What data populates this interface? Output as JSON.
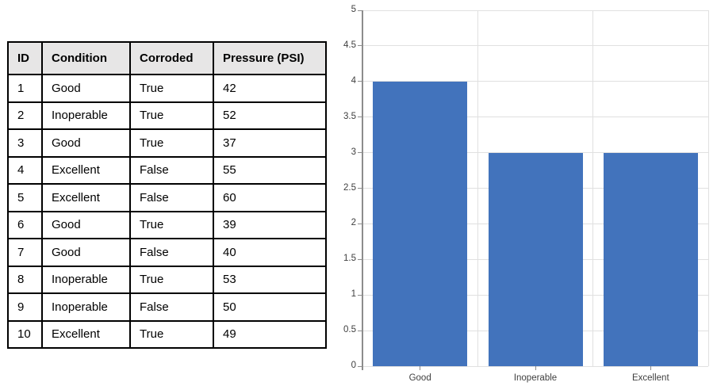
{
  "table": {
    "headers": [
      "ID",
      "Condition",
      "Corroded",
      "Pressure (PSI)"
    ],
    "rows": [
      {
        "id": "1",
        "condition": "Good",
        "corroded": "True",
        "pressure": "42"
      },
      {
        "id": "2",
        "condition": "Inoperable",
        "corroded": "True",
        "pressure": "52"
      },
      {
        "id": "3",
        "condition": "Good",
        "corroded": "True",
        "pressure": "37"
      },
      {
        "id": "4",
        "condition": "Excellent",
        "corroded": "False",
        "pressure": "55"
      },
      {
        "id": "5",
        "condition": "Excellent",
        "corroded": "False",
        "pressure": "60"
      },
      {
        "id": "6",
        "condition": "Good",
        "corroded": "True",
        "pressure": "39"
      },
      {
        "id": "7",
        "condition": "Good",
        "corroded": "False",
        "pressure": "40"
      },
      {
        "id": "8",
        "condition": "Inoperable",
        "corroded": "True",
        "pressure": "53"
      },
      {
        "id": "9",
        "condition": "Inoperable",
        "corroded": "False",
        "pressure": "50"
      },
      {
        "id": "10",
        "condition": "Excellent",
        "corroded": "True",
        "pressure": "49"
      }
    ],
    "header_bg": "#E7E6E6",
    "border_color": "#000000"
  },
  "chart_data": {
    "type": "bar",
    "categories": [
      "Good",
      "Inoperable",
      "Excellent"
    ],
    "values": [
      4,
      3,
      3
    ],
    "title": "",
    "xlabel": "",
    "ylabel": "",
    "ylim": [
      0,
      5
    ],
    "ytick_step": 0.5,
    "yticks": [
      "5",
      "4.5",
      "4",
      "3.5",
      "3",
      "2.5",
      "2",
      "1.5",
      "1",
      "0.5",
      "0"
    ],
    "grid": "on",
    "legend": "none",
    "bar_color": "#4273BC",
    "gridline_color": "#E0E0E0",
    "axis_color": "#8C8C8C",
    "tick_label_color": "#3F3F3F"
  }
}
